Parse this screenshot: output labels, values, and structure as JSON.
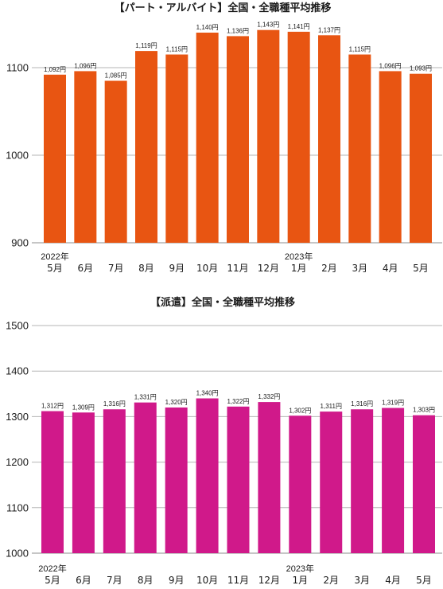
{
  "chart_data": [
    {
      "type": "bar",
      "title": "【パート・アルバイト】全国・全職種平均推移",
      "categories": [
        "5月",
        "6月",
        "7月",
        "8月",
        "9月",
        "10月",
        "11月",
        "12月",
        "1月",
        "2月",
        "3月",
        "4月",
        "5月"
      ],
      "year_labels": [
        {
          "index": 0,
          "label": "2022年"
        },
        {
          "index": 8,
          "label": "2023年"
        }
      ],
      "values": [
        1092,
        1096,
        1085,
        1119,
        1115,
        1140,
        1136,
        1143,
        1141,
        1137,
        1115,
        1096,
        1093
      ],
      "data_labels": [
        "1,092円",
        "1,096円",
        "1,085円",
        "1,119円",
        "1,115円",
        "1,140円",
        "1,136円",
        "1,143円",
        "1,141円",
        "1,137円",
        "1,115円",
        "1,096円",
        "1,093円"
      ],
      "yticks": [
        900,
        1000,
        1100
      ],
      "ylim": [
        900,
        1150
      ],
      "grid": true,
      "color": "#E85512"
    },
    {
      "type": "bar",
      "title": "【派遣】全国・全職種平均推移",
      "categories": [
        "5月",
        "6月",
        "7月",
        "8月",
        "9月",
        "10月",
        "11月",
        "12月",
        "1月",
        "2月",
        "3月",
        "4月",
        "5月"
      ],
      "year_labels": [
        {
          "index": 0,
          "label": "2022年"
        },
        {
          "index": 8,
          "label": "2023年"
        }
      ],
      "values": [
        1312,
        1309,
        1316,
        1331,
        1320,
        1340,
        1322,
        1332,
        1302,
        1311,
        1316,
        1319,
        1303
      ],
      "data_labels": [
        "1,312円",
        "1,309円",
        "1,316円",
        "1,331円",
        "1,320円",
        "1,340円",
        "1,322円",
        "1,332円",
        "1,302円",
        "1,311円",
        "1,316円",
        "1,319円",
        "1,303円"
      ],
      "yticks": [
        1000,
        1100,
        1200,
        1300,
        1400,
        1500
      ],
      "ylim": [
        1000,
        1500
      ],
      "grid": true,
      "color": "#D0198A"
    }
  ]
}
